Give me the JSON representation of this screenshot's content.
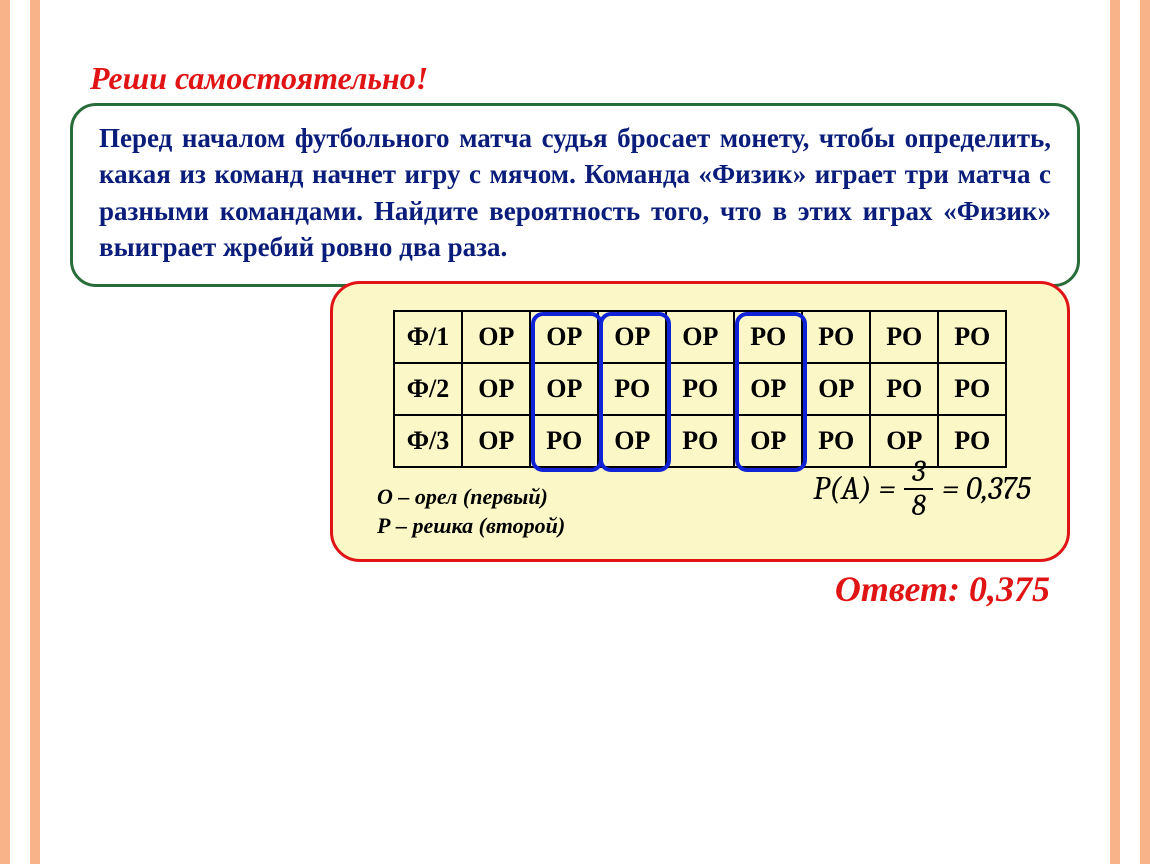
{
  "colors": {
    "stripe": "#f8b488",
    "heading": "#e01414",
    "problem_border": "#286c3a",
    "problem_text": "#0a1d7a",
    "solution_border": "#e01414",
    "solution_bg": "#fbf7c7",
    "highlight_border": "#1024d6",
    "circle": "#f58d3c",
    "table_border": "#000000"
  },
  "heading": "Реши самостоятельно!",
  "problem_text": "Перед началом футбольного матча судья бросает монету, чтобы определить, какая из команд начнет игру с мячом. Команда «Физик» играет три матча с разными командами. Найдите вероятность того, что в этих играх «Физик» выиграет жребий ровно два раза.",
  "table": {
    "type": "table",
    "row_headers": [
      "Ф/1",
      "Ф/2",
      "Ф/3"
    ],
    "columns": 8,
    "rows": [
      [
        "ОР",
        "ОР",
        "ОР",
        "ОР",
        "РО",
        "РО",
        "РО",
        "РО"
      ],
      [
        "ОР",
        "ОР",
        "РО",
        "РО",
        "ОР",
        "ОР",
        "РО",
        "РО"
      ],
      [
        "ОР",
        "РО",
        "ОР",
        "РО",
        "ОР",
        "РО",
        "ОР",
        "РО"
      ]
    ],
    "highlighted_columns": [
      1,
      2,
      4
    ],
    "cell_fontsize": 26,
    "cell_padding": "10px 12px"
  },
  "legend": {
    "line1": "О – орел (первый)",
    "line2": "Р – решка (второй)"
  },
  "formula": {
    "lhs": "P(A) =",
    "numerator": "3",
    "denominator": "8",
    "equals": "= 0,375"
  },
  "answer_label": "Ответ: 0,375"
}
